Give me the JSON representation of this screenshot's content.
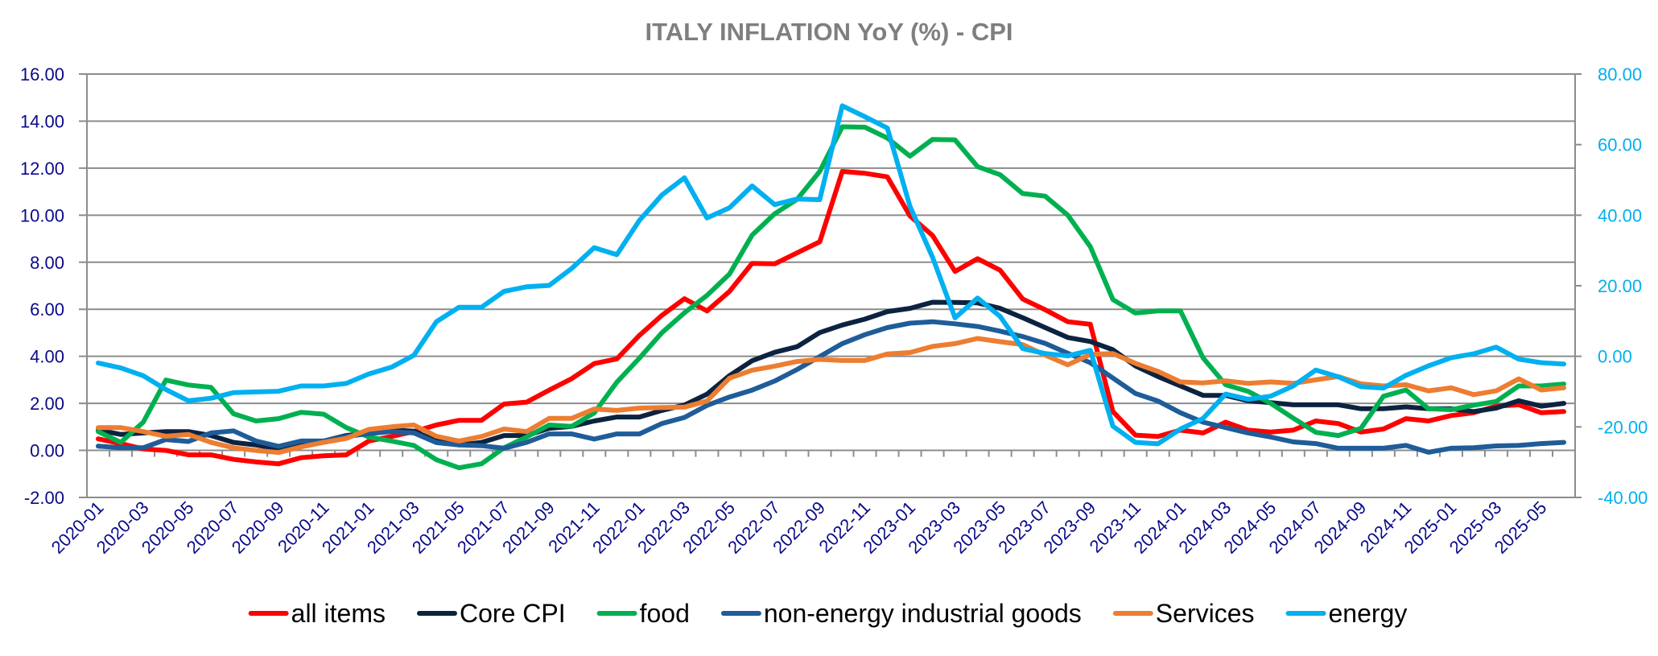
{
  "chart_data": {
    "type": "line",
    "title": "ITALY INFLATION YoY (%) - CPI",
    "xlabel": "",
    "ylabel": "",
    "ylabel_right": "",
    "ylim": [
      -2,
      16
    ],
    "ylim_right": [
      -40,
      80
    ],
    "yticks": [
      "16.00",
      "14.00",
      "12.00",
      "10.00",
      "8.00",
      "6.00",
      "4.00",
      "2.00",
      "0.00",
      "-2.00"
    ],
    "yticks_right": [
      "80.00",
      "60.00",
      "40.00",
      "20.00",
      "0.00",
      "-20.00",
      "-40.00"
    ],
    "grid": true,
    "legend_position": "bottom",
    "x": [
      "2020-01",
      "2020-02",
      "2020-03",
      "2020-04",
      "2020-05",
      "2020-06",
      "2020-07",
      "2020-08",
      "2020-09",
      "2020-10",
      "2020-11",
      "2020-12",
      "2021-01",
      "2021-02",
      "2021-03",
      "2021-04",
      "2021-05",
      "2021-06",
      "2021-07",
      "2021-08",
      "2021-09",
      "2021-10",
      "2021-11",
      "2021-12",
      "2022-01",
      "2022-02",
      "2022-03",
      "2022-04",
      "2022-05",
      "2022-06",
      "2022-07",
      "2022-08",
      "2022-09",
      "2022-10",
      "2022-11",
      "2022-12",
      "2023-01",
      "2023-02",
      "2023-03",
      "2023-04",
      "2023-05",
      "2023-06",
      "2023-07",
      "2023-08",
      "2023-09",
      "2023-10",
      "2023-11",
      "2023-12",
      "2024-01",
      "2024-02",
      "2024-03",
      "2024-04",
      "2024-05",
      "2024-06",
      "2024-07",
      "2024-08",
      "2024-09",
      "2024-10",
      "2024-11",
      "2024-12",
      "2025-01",
      "2025-02",
      "2025-03",
      "2025-04",
      "2025-05",
      "2025-06"
    ],
    "xtick_labels": [
      "2020-01",
      "2020-03",
      "2020-05",
      "2020-07",
      "2020-09",
      "2020-11",
      "2021-01",
      "2021-03",
      "2021-05",
      "2021-07",
      "2021-09",
      "2021-11",
      "2022-01",
      "2022-03",
      "2022-05",
      "2022-07",
      "2022-09",
      "2022-11",
      "2023-01",
      "2023-03",
      "2023-05",
      "2023-07",
      "2023-09",
      "2023-11",
      "2024-01",
      "2024-03",
      "2024-05",
      "2024-07",
      "2024-09",
      "2024-11",
      "2025-01",
      "2025-03",
      "2025-05"
    ],
    "series": [
      {
        "name": "all items",
        "color": "#ff0000",
        "axis": "left",
        "values": [
          0.49,
          0.29,
          0.06,
          0.0,
          -0.19,
          -0.19,
          -0.38,
          -0.49,
          -0.57,
          -0.31,
          -0.23,
          -0.19,
          0.4,
          0.59,
          0.8,
          1.08,
          1.28,
          1.28,
          1.97,
          2.05,
          2.56,
          3.05,
          3.69,
          3.89,
          4.89,
          5.74,
          6.45,
          5.93,
          6.76,
          7.95,
          7.93,
          8.4,
          8.87,
          11.86,
          11.78,
          11.63,
          9.97,
          9.14,
          7.61,
          8.15,
          7.66,
          6.44,
          5.98,
          5.47,
          5.36,
          1.65,
          0.65,
          0.59,
          0.86,
          0.74,
          1.2,
          0.86,
          0.78,
          0.86,
          1.25,
          1.14,
          0.78,
          0.91,
          1.35,
          1.25,
          1.48,
          1.6,
          1.88,
          1.94,
          1.6,
          1.65
        ]
      },
      {
        "name": "Core CPI",
        "color": "#0c2340",
        "axis": "left",
        "values": [
          0.86,
          0.68,
          0.74,
          0.8,
          0.8,
          0.63,
          0.34,
          0.23,
          0.06,
          0.25,
          0.4,
          0.63,
          0.74,
          0.86,
          0.82,
          0.4,
          0.23,
          0.34,
          0.63,
          0.63,
          0.94,
          1.02,
          1.25,
          1.42,
          1.42,
          1.7,
          1.93,
          2.39,
          3.18,
          3.81,
          4.17,
          4.41,
          5.01,
          5.33,
          5.58,
          5.9,
          6.04,
          6.3,
          6.29,
          6.27,
          6.04,
          5.64,
          5.22,
          4.8,
          4.63,
          4.28,
          3.59,
          3.14,
          2.74,
          2.34,
          2.34,
          2.11,
          2.03,
          1.94,
          1.94,
          1.94,
          1.77,
          1.77,
          1.85,
          1.77,
          1.77,
          1.65,
          1.8,
          2.11,
          1.88,
          2.0
        ]
      },
      {
        "name": "food",
        "color": "#00b050",
        "axis": "left",
        "values": [
          0.8,
          0.34,
          1.2,
          2.99,
          2.78,
          2.68,
          1.56,
          1.25,
          1.35,
          1.62,
          1.54,
          0.97,
          0.57,
          0.4,
          0.21,
          -0.4,
          -0.74,
          -0.57,
          0.11,
          0.57,
          1.08,
          1.02,
          1.59,
          2.9,
          3.92,
          5.0,
          5.85,
          6.59,
          7.5,
          9.15,
          10.06,
          10.68,
          11.86,
          13.76,
          13.74,
          13.28,
          12.51,
          13.22,
          13.2,
          12.06,
          11.72,
          10.92,
          10.81,
          10.0,
          8.66,
          6.41,
          5.84,
          5.93,
          5.93,
          3.93,
          2.79,
          2.51,
          2.0,
          1.37,
          0.77,
          0.63,
          0.94,
          2.3,
          2.57,
          1.77,
          1.73,
          1.92,
          2.08,
          2.74,
          2.74,
          2.82
        ]
      },
      {
        "name": "non-energy industrial goods",
        "color": "#1f5c99",
        "axis": "left",
        "values": [
          0.18,
          0.11,
          0.11,
          0.46,
          0.38,
          0.74,
          0.83,
          0.4,
          0.17,
          0.4,
          0.4,
          0.59,
          0.71,
          0.8,
          0.74,
          0.33,
          0.23,
          0.2,
          0.09,
          0.34,
          0.7,
          0.7,
          0.48,
          0.7,
          0.7,
          1.14,
          1.4,
          1.91,
          2.27,
          2.56,
          2.95,
          3.44,
          3.99,
          4.54,
          4.92,
          5.22,
          5.41,
          5.47,
          5.38,
          5.27,
          5.07,
          4.84,
          4.55,
          4.13,
          3.73,
          3.08,
          2.42,
          2.1,
          1.6,
          1.2,
          0.97,
          0.74,
          0.57,
          0.36,
          0.29,
          0.09,
          0.09,
          0.09,
          0.21,
          -0.08,
          0.09,
          0.11,
          0.19,
          0.21,
          0.29,
          0.34
        ]
      },
      {
        "name": "Services",
        "color": "#ed7d31",
        "axis": "left",
        "values": [
          0.97,
          0.97,
          0.8,
          0.6,
          0.68,
          0.34,
          0.11,
          0.0,
          -0.09,
          0.15,
          0.34,
          0.51,
          0.89,
          1.0,
          1.08,
          0.6,
          0.4,
          0.59,
          0.91,
          0.8,
          1.36,
          1.36,
          1.76,
          1.7,
          1.8,
          1.82,
          1.84,
          2.1,
          3.07,
          3.41,
          3.58,
          3.78,
          3.87,
          3.82,
          3.82,
          4.1,
          4.16,
          4.42,
          4.54,
          4.76,
          4.62,
          4.5,
          4.05,
          3.64,
          4.08,
          4.12,
          3.7,
          3.36,
          2.91,
          2.87,
          2.96,
          2.85,
          2.91,
          2.85,
          3.0,
          3.14,
          2.83,
          2.74,
          2.79,
          2.53,
          2.66,
          2.37,
          2.53,
          3.04,
          2.57,
          2.66
        ]
      },
      {
        "name": "energy",
        "color": "#00b0f0",
        "axis": "right",
        "values": [
          -1.9,
          -3.3,
          -5.5,
          -9.4,
          -12.6,
          -11.9,
          -10.3,
          -10.1,
          -9.9,
          -8.4,
          -8.4,
          -7.7,
          -5.0,
          -3.1,
          0.3,
          9.8,
          13.9,
          13.9,
          18.4,
          19.7,
          20.1,
          24.9,
          30.8,
          28.8,
          38.5,
          45.7,
          50.6,
          39.2,
          42.1,
          48.3,
          43.0,
          44.6,
          44.4,
          71.0,
          67.9,
          64.7,
          42.5,
          28.1,
          10.9,
          16.5,
          11.3,
          2.2,
          0.8,
          0.1,
          1.7,
          -19.8,
          -24.4,
          -24.8,
          -20.6,
          -17.6,
          -10.7,
          -12.2,
          -11.3,
          -8.4,
          -3.9,
          -5.8,
          -8.6,
          -9.0,
          -5.4,
          -2.7,
          -0.4,
          0.7,
          2.6,
          -0.8,
          -1.8,
          -2.2
        ]
      }
    ]
  },
  "colors": {
    "title": "#7f7f7f",
    "left_axis_labels": "#0a0a8a",
    "right_axis_labels": "#00b0f0",
    "gridlines": "#8c8c8c"
  }
}
